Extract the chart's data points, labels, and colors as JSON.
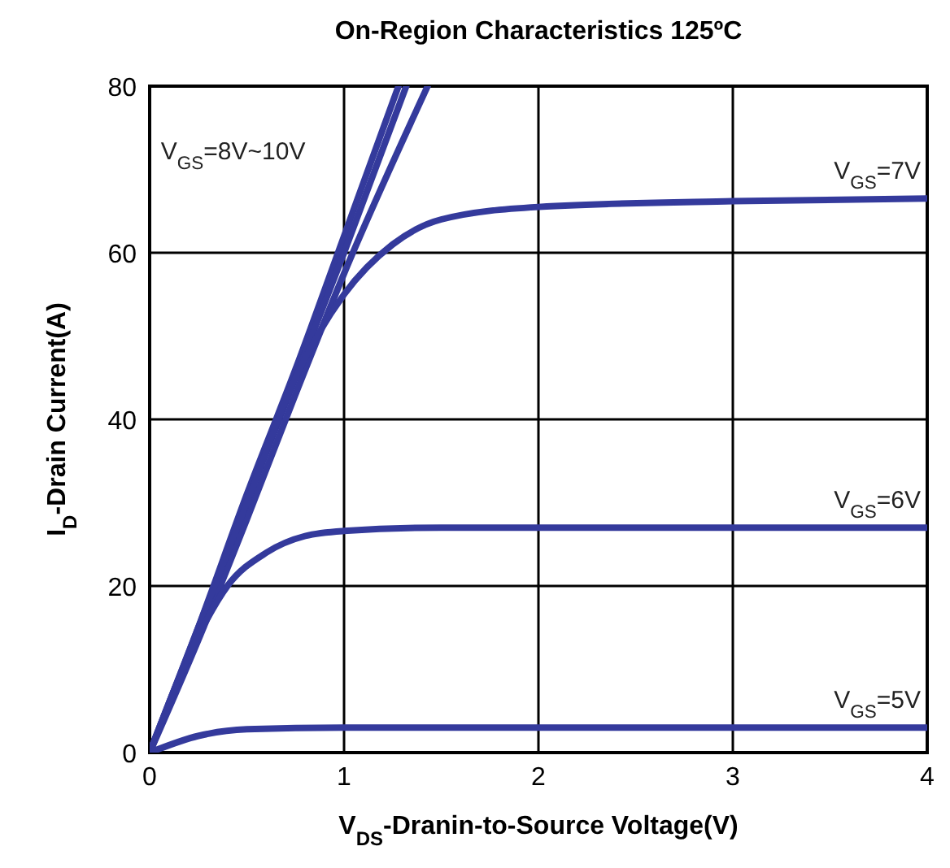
{
  "chart_data": {
    "type": "line",
    "title": "On-Region Characteristics 125ºC",
    "xlabel": "V$_{DS}$-Dranin-to-Source Voltage(V)",
    "ylabel": "I$_{D}$-Drain Current(A)",
    "xlim": [
      0,
      4
    ],
    "xticks": [
      0,
      1,
      2,
      3,
      4
    ],
    "ylim": [
      0,
      80
    ],
    "yticks": [
      0,
      20,
      40,
      60,
      80
    ],
    "grid": true,
    "marker": "none",
    "line_style": "solid",
    "series": [
      {
        "color": "#343a9c",
        "x": [
          0,
          0.25,
          0.5,
          0.75,
          1,
          1.28
        ],
        "values": [
          0,
          15,
          31,
          46,
          62,
          80
        ]
      },
      {
        "name": "V$_{GS}$=8V~10V",
        "color": "#343a9c",
        "x": [
          0,
          0.25,
          0.5,
          0.75,
          1,
          1.32
        ],
        "values": [
          0,
          14.5,
          30,
          45,
          60,
          80
        ]
      },
      {
        "color": "#343a9c",
        "x": [
          0,
          0.25,
          0.5,
          0.75,
          1,
          1.43
        ],
        "values": [
          0,
          13.5,
          28,
          43,
          57.5,
          80
        ]
      },
      {
        "name": "V$_{GS}$=7V",
        "color": "#343a9c",
        "x": [
          0,
          0.25,
          0.5,
          0.75,
          1,
          1.25,
          1.5,
          2,
          3,
          4
        ],
        "values": [
          0,
          15,
          30,
          45,
          55,
          61,
          64,
          65.5,
          66.2,
          66.5
        ]
      },
      {
        "name": "V$_{GS}$=6V",
        "color": "#343a9c",
        "x": [
          0,
          0.25,
          0.4,
          0.6,
          0.8,
          1,
          1.5,
          2,
          4
        ],
        "values": [
          0,
          14,
          20,
          24,
          26,
          26.6,
          27,
          27,
          27
        ]
      },
      {
        "name": "V$_{GS}$=5V",
        "color": "#343a9c",
        "x": [
          0,
          0.25,
          0.5,
          1,
          4
        ],
        "values": [
          0,
          2,
          2.8,
          3,
          3
        ]
      }
    ]
  }
}
